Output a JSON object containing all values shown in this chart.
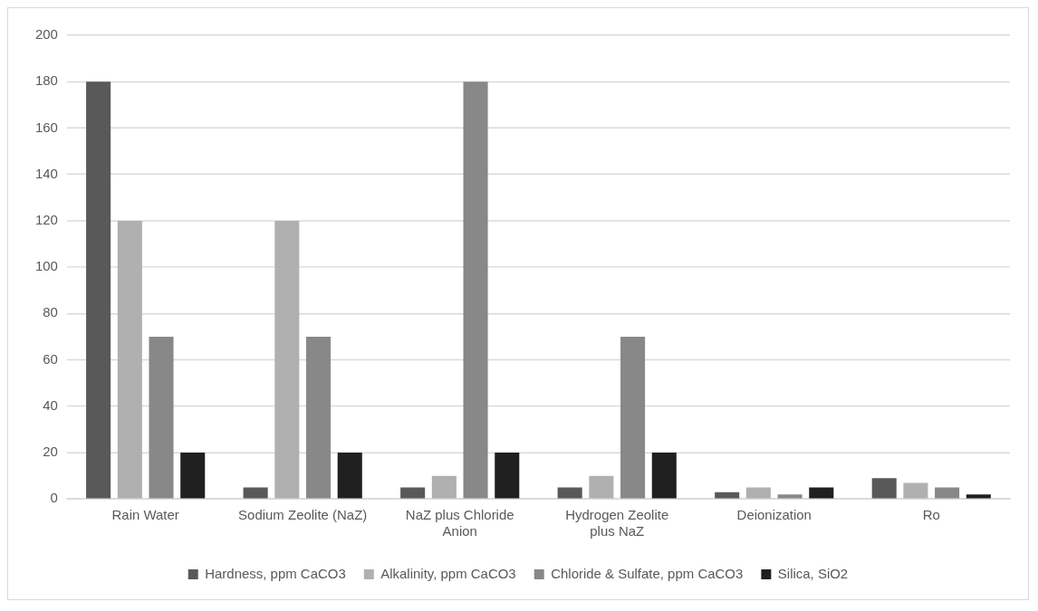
{
  "chart_data": {
    "type": "bar",
    "categories": [
      "Rain Water",
      "Sodium Zeolite (NaZ)",
      "NaZ plus Chloride Anion",
      "Hydrogen Zeolite plus NaZ",
      "Deionization",
      "Ro"
    ],
    "series": [
      {
        "name": "Hardness, ppm CaCO3",
        "color": "#595959",
        "values": [
          180,
          5,
          5,
          5,
          3,
          9
        ]
      },
      {
        "name": "Alkalinity, ppm CaCO3",
        "color": "#b0b0b0",
        "values": [
          120,
          120,
          10,
          10,
          5,
          7
        ]
      },
      {
        "name": "Chloride & Sulfate, ppm CaCO3",
        "color": "#888888",
        "values": [
          70,
          70,
          180,
          70,
          2,
          5
        ]
      },
      {
        "name": "Silica, SiO2",
        "color": "#202020",
        "values": [
          20,
          20,
          20,
          20,
          5,
          2
        ]
      }
    ],
    "ylim": [
      0,
      200
    ],
    "yticks": [
      0,
      20,
      40,
      60,
      80,
      100,
      120,
      140,
      160,
      180,
      200
    ],
    "grid": "y",
    "legend": "bottom"
  }
}
